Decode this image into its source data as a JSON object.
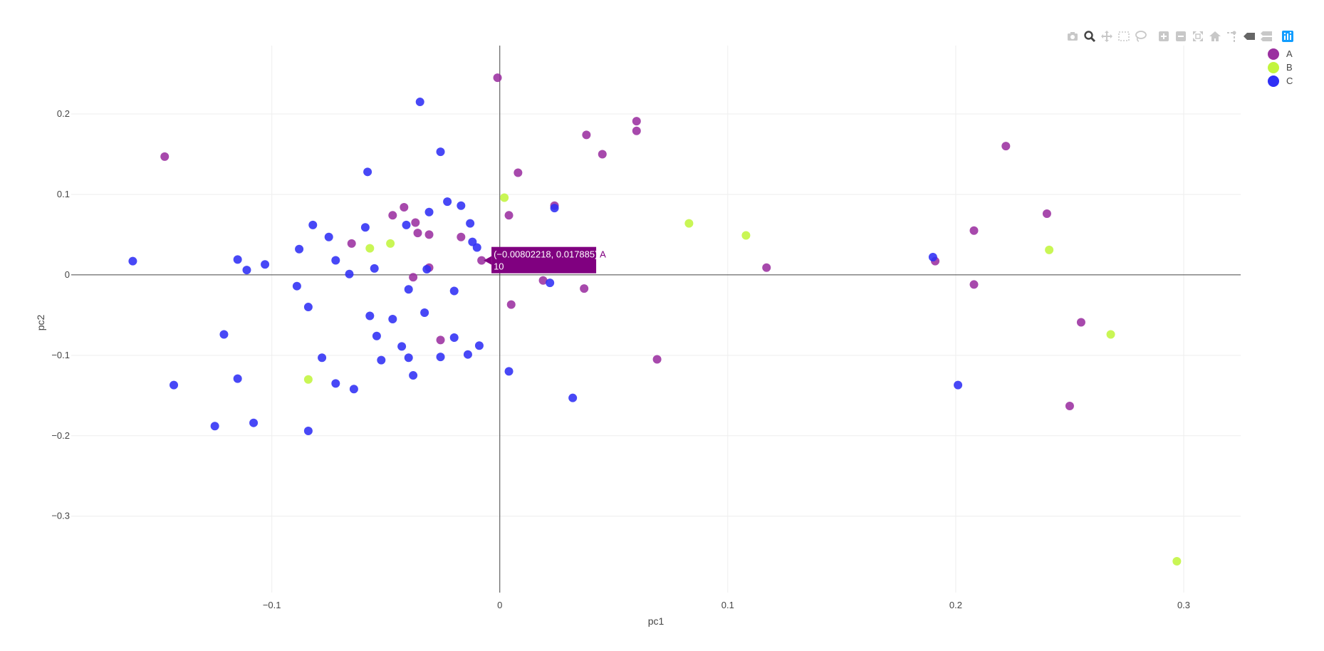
{
  "toolbar": [
    {
      "name": "camera-icon",
      "title": "Download plot as a png"
    },
    {
      "name": "zoom-icon",
      "title": "Zoom",
      "active": true
    },
    {
      "name": "pan-icon",
      "title": "Pan"
    },
    {
      "name": "box-select-icon",
      "title": "Box Select"
    },
    {
      "name": "lasso-select-icon",
      "title": "Lasso Select"
    },
    {
      "name": "zoom-in-icon",
      "title": "Zoom in"
    },
    {
      "name": "zoom-out-icon",
      "title": "Zoom out"
    },
    {
      "name": "autoscale-icon",
      "title": "Autoscale"
    },
    {
      "name": "reset-axes-icon",
      "title": "Reset axes"
    },
    {
      "name": "spike-lines-icon",
      "title": "Toggle Spike Lines"
    },
    {
      "name": "hover-closest-icon",
      "title": "Show closest data on hover"
    },
    {
      "name": "hover-compare-icon",
      "title": "Compare data on hover"
    },
    {
      "name": "plotly-logo-icon",
      "title": "Produced with Plotly"
    }
  ],
  "colors": {
    "A": "#9b30a0",
    "B": "#c2f53d",
    "C": "#2f2ff5",
    "tooltip": "#800080"
  },
  "tooltip": {
    "coords": "(−0.00802218, 0.017885)",
    "series": "A",
    "id": "10",
    "x": -0.00802218,
    "y": 0.017885
  },
  "chart_data": {
    "type": "scatter",
    "xlabel": "pc1",
    "ylabel": "pc2",
    "xlim": [
      -0.188,
      0.325
    ],
    "ylim": [
      -0.395,
      0.285
    ],
    "xticks": [
      -0.1,
      0,
      0.1,
      0.2,
      0.3
    ],
    "xtick_labels": [
      "−0.1",
      "0",
      "0.1",
      "0.2",
      "0.3"
    ],
    "yticks": [
      -0.3,
      -0.2,
      -0.1,
      0,
      0.1,
      0.2
    ],
    "ytick_labels": [
      "−0.3",
      "−0.2",
      "−0.1",
      "0",
      "0.1",
      "0.2"
    ],
    "grid": true,
    "legend": "top-right",
    "series": [
      {
        "name": "A",
        "color": "#9b30a0",
        "points": [
          [
            -0.147,
            0.147
          ],
          [
            -0.001,
            0.245
          ],
          [
            0.038,
            0.174
          ],
          [
            0.06,
            0.191
          ],
          [
            0.06,
            0.179
          ],
          [
            0.045,
            0.15
          ],
          [
            0.008,
            0.127
          ],
          [
            0.024,
            0.086
          ],
          [
            0.004,
            0.074
          ],
          [
            -0.047,
            0.074
          ],
          [
            -0.042,
            0.084
          ],
          [
            -0.037,
            0.065
          ],
          [
            -0.036,
            0.052
          ],
          [
            -0.031,
            0.05
          ],
          [
            -0.017,
            0.047
          ],
          [
            -0.065,
            0.039
          ],
          [
            -0.008,
            0.0179
          ],
          [
            -0.031,
            0.009
          ],
          [
            -0.038,
            -0.003
          ],
          [
            0.019,
            -0.007
          ],
          [
            0.005,
            -0.037
          ],
          [
            0.037,
            -0.017
          ],
          [
            0.069,
            -0.105
          ],
          [
            -0.026,
            -0.081
          ],
          [
            0.117,
            0.009
          ],
          [
            0.191,
            0.017
          ],
          [
            0.208,
            0.055
          ],
          [
            0.208,
            -0.012
          ],
          [
            0.222,
            0.16
          ],
          [
            0.24,
            0.076
          ],
          [
            0.255,
            -0.059
          ],
          [
            0.25,
            -0.163
          ]
        ]
      },
      {
        "name": "B",
        "color": "#c2f53d",
        "points": [
          [
            0.002,
            0.096
          ],
          [
            -0.057,
            0.033
          ],
          [
            -0.048,
            0.039
          ],
          [
            -0.084,
            -0.13
          ],
          [
            0.083,
            0.064
          ],
          [
            0.108,
            0.049
          ],
          [
            0.241,
            0.031
          ],
          [
            0.268,
            -0.074
          ],
          [
            0.297,
            -0.356
          ]
        ]
      },
      {
        "name": "C",
        "color": "#2f2ff5",
        "points": [
          [
            -0.161,
            0.017
          ],
          [
            -0.143,
            -0.137
          ],
          [
            -0.125,
            -0.188
          ],
          [
            -0.121,
            -0.074
          ],
          [
            -0.115,
            0.019
          ],
          [
            -0.115,
            -0.129
          ],
          [
            -0.111,
            0.006
          ],
          [
            -0.108,
            -0.184
          ],
          [
            -0.103,
            0.013
          ],
          [
            -0.089,
            -0.014
          ],
          [
            -0.088,
            0.032
          ],
          [
            -0.084,
            -0.04
          ],
          [
            -0.084,
            -0.194
          ],
          [
            -0.082,
            0.062
          ],
          [
            -0.078,
            -0.103
          ],
          [
            -0.075,
            0.047
          ],
          [
            -0.072,
            0.018
          ],
          [
            -0.072,
            -0.135
          ],
          [
            -0.066,
            0.001
          ],
          [
            -0.064,
            -0.142
          ],
          [
            -0.058,
            0.128
          ],
          [
            -0.059,
            0.059
          ],
          [
            -0.057,
            -0.051
          ],
          [
            -0.055,
            0.008
          ],
          [
            -0.054,
            -0.076
          ],
          [
            -0.052,
            -0.106
          ],
          [
            -0.047,
            -0.055
          ],
          [
            -0.043,
            -0.089
          ],
          [
            -0.041,
            0.062
          ],
          [
            -0.04,
            -0.018
          ],
          [
            -0.04,
            -0.103
          ],
          [
            -0.038,
            -0.125
          ],
          [
            -0.035,
            0.215
          ],
          [
            -0.033,
            -0.047
          ],
          [
            -0.031,
            0.078
          ],
          [
            -0.032,
            0.007
          ],
          [
            -0.026,
            0.153
          ],
          [
            -0.026,
            -0.102
          ],
          [
            -0.023,
            0.091
          ],
          [
            -0.02,
            -0.02
          ],
          [
            -0.02,
            -0.078
          ],
          [
            -0.017,
            0.086
          ],
          [
            -0.013,
            0.064
          ],
          [
            -0.014,
            -0.099
          ],
          [
            -0.012,
            0.041
          ],
          [
            -0.01,
            0.034
          ],
          [
            -0.009,
            -0.088
          ],
          [
            0.004,
            -0.12
          ],
          [
            0.022,
            -0.01
          ],
          [
            0.024,
            0.083
          ],
          [
            0.032,
            -0.153
          ],
          [
            0.19,
            0.022
          ],
          [
            0.201,
            -0.137
          ]
        ]
      }
    ]
  }
}
